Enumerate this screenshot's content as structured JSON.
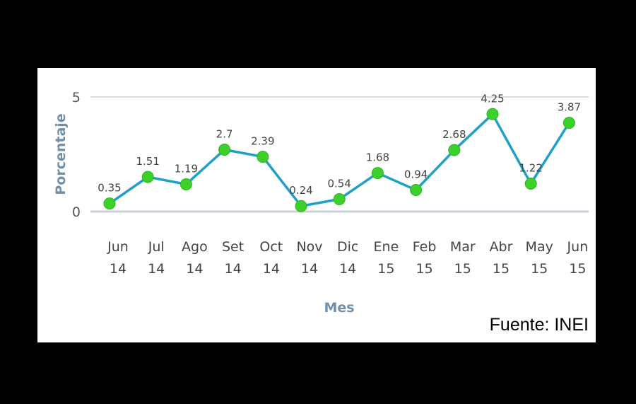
{
  "chart_data": {
    "type": "line",
    "title": "",
    "xlabel": "Mes",
    "ylabel": "Porcentaje",
    "categories": [
      [
        "Jun",
        "14"
      ],
      [
        "Jul",
        "14"
      ],
      [
        "Ago",
        "14"
      ],
      [
        "Set",
        "14"
      ],
      [
        "Oct",
        "14"
      ],
      [
        "Nov",
        "14"
      ],
      [
        "Dic",
        "14"
      ],
      [
        "Ene",
        "15"
      ],
      [
        "Feb",
        "15"
      ],
      [
        "Mar",
        "15"
      ],
      [
        "Abr",
        "15"
      ],
      [
        "May",
        "15"
      ],
      [
        "Jun",
        "15"
      ]
    ],
    "values": [
      0.35,
      1.51,
      1.19,
      2.7,
      2.39,
      0.24,
      0.54,
      1.68,
      0.94,
      2.68,
      4.25,
      1.22,
      3.87
    ],
    "data_labels": [
      "0.35",
      "1.51",
      "1.19",
      "2.7",
      "2.39",
      "0.24",
      "0.54",
      "1.68",
      "0.94",
      "2.68",
      "4.25",
      "1.22",
      "3.87"
    ],
    "ylim": [
      0,
      5
    ],
    "yticks": [
      "0",
      "5"
    ],
    "grid": true,
    "legend": "none",
    "colors": {
      "line": "#1fa1c7",
      "marker": "#3cd12a",
      "grid": "#c8d0d8",
      "axis_title": "#6f8fa8"
    }
  },
  "source_note": "Fuente: INEI"
}
